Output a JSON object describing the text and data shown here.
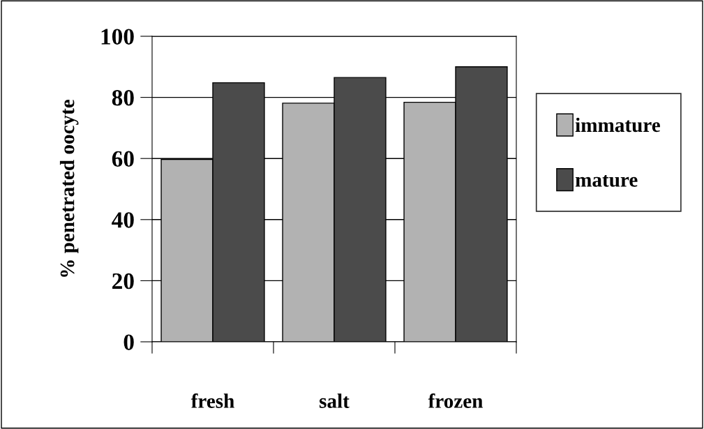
{
  "chart_data": {
    "type": "bar",
    "ylabel": "% penetrated oocyte",
    "categories": [
      "fresh",
      "salt",
      "frozen"
    ],
    "series": [
      {
        "name": "immature",
        "color": "#b2b2b2",
        "values": [
          59.7,
          78.1,
          78.4
        ]
      },
      {
        "name": "mature",
        "color": "#4b4b4b",
        "values": [
          84.8,
          86.5,
          90
        ]
      }
    ],
    "ylim": [
      0,
      100
    ],
    "yticks": [
      0,
      20,
      40,
      60,
      80,
      100
    ],
    "grid": "y",
    "legend": "right"
  }
}
